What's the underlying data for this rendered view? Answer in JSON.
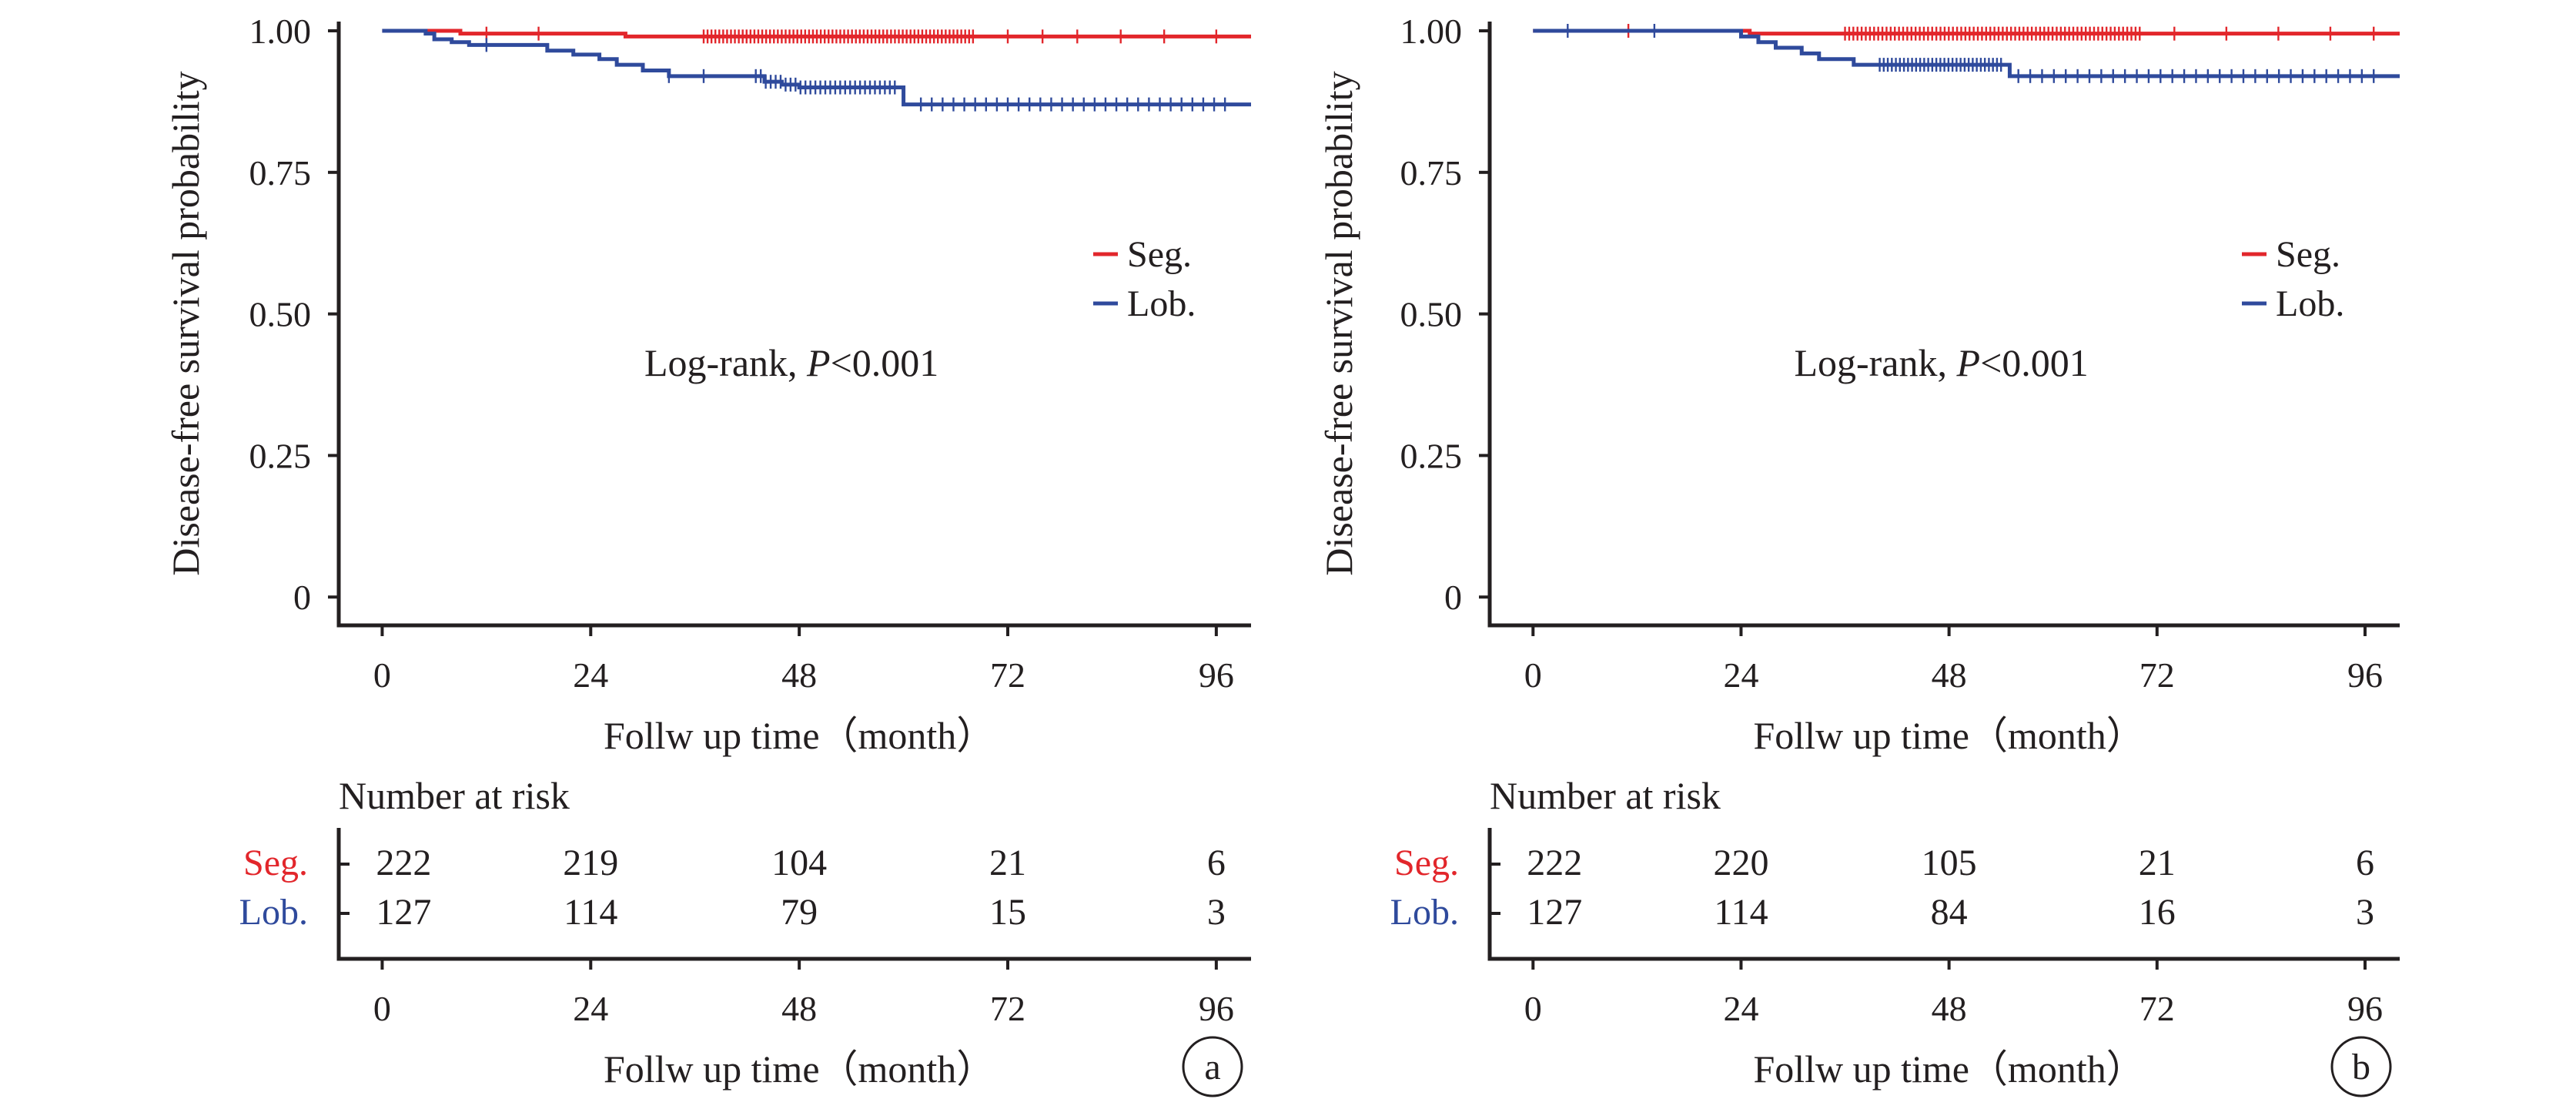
{
  "colors": {
    "seg": "#e2262b",
    "lob": "#2f4a9c",
    "ink": "#231f20"
  },
  "chart_data": [
    {
      "type": "line",
      "panel_label": "a",
      "ylabel": "Disease-free survival probability",
      "xlabel": "Follw up time（month）",
      "xticks": [
        "0",
        "24",
        "48",
        "72",
        "96"
      ],
      "yticks": [
        "0",
        "0.25",
        "0.50",
        "0.75",
        "1.00"
      ],
      "xlim": [
        -5,
        100
      ],
      "ylim": [
        -0.05,
        1.0
      ],
      "annotation": {
        "prefix": "Log-rank, ",
        "italic": "P",
        "suffix": "<0.001"
      },
      "legend": {
        "position": "right",
        "entries": [
          "Seg.",
          "Lob."
        ]
      },
      "series": [
        {
          "name": "Seg.",
          "color": "#e2262b",
          "steps": [
            [
              0,
              1.0
            ],
            [
              9,
              0.995
            ],
            [
              28,
              0.99
            ],
            [
              100,
              0.99
            ]
          ],
          "censored": {
            "ranges": [
              [
                37,
                68
              ]
            ],
            "count": 70,
            "points": [
              12,
              18,
              72,
              76,
              80,
              85,
              90,
              96
            ]
          }
        },
        {
          "name": "Lob.",
          "color": "#2f4a9c",
          "steps": [
            [
              0,
              1.0
            ],
            [
              5,
              0.995
            ],
            [
              6,
              0.985
            ],
            [
              8,
              0.98
            ],
            [
              10,
              0.975
            ],
            [
              19,
              0.965
            ],
            [
              22,
              0.958
            ],
            [
              25,
              0.95
            ],
            [
              27,
              0.94
            ],
            [
              30,
              0.93
            ],
            [
              33,
              0.92
            ],
            [
              44,
              0.91
            ],
            [
              46,
              0.905
            ],
            [
              48,
              0.9
            ],
            [
              60,
              0.87
            ],
            [
              100,
              0.87
            ]
          ],
          "censored": {
            "ranges": [
              [
                43,
                59
              ],
              [
                62,
                97
              ]
            ],
            "count": 58,
            "points": [
              12,
              33,
              37
            ]
          }
        }
      ],
      "risk_table": {
        "title": "Number at risk",
        "rows": [
          {
            "label": "Seg.",
            "values": [
              "222",
              "219",
              "104",
              "21",
              "6"
            ]
          },
          {
            "label": "Lob.",
            "values": [
              "127",
              "114",
              "79",
              "15",
              "3"
            ]
          }
        ],
        "xticks": [
          "0",
          "24",
          "48",
          "72",
          "96"
        ],
        "xlabel": "Follw up time（month）"
      }
    },
    {
      "type": "line",
      "panel_label": "b",
      "ylabel": "Disease-free survival probability",
      "xlabel": "Follw up time（month）",
      "xticks": [
        "0",
        "24",
        "48",
        "72",
        "96"
      ],
      "yticks": [
        "0",
        "0.25",
        "0.50",
        "0.75",
        "1.00"
      ],
      "xlim": [
        -5,
        100
      ],
      "ylim": [
        -0.05,
        1.0
      ],
      "annotation": {
        "prefix": "Log-rank, ",
        "italic": "P",
        "suffix": "<0.001"
      },
      "legend": {
        "position": "right",
        "entries": [
          "Seg.",
          "Lob."
        ]
      },
      "series": [
        {
          "name": "Seg.",
          "color": "#e2262b",
          "steps": [
            [
              0,
              1.0
            ],
            [
              25,
              0.995
            ],
            [
              100,
              0.995
            ]
          ],
          "censored": {
            "ranges": [
              [
                36,
                70
              ]
            ],
            "count": 72,
            "points": [
              11,
              74,
              80,
              86,
              92,
              97
            ]
          }
        },
        {
          "name": "Lob.",
          "color": "#2f4a9c",
          "steps": [
            [
              0,
              1.0
            ],
            [
              24,
              0.99
            ],
            [
              26,
              0.98
            ],
            [
              28,
              0.97
            ],
            [
              31,
              0.96
            ],
            [
              33,
              0.95
            ],
            [
              37,
              0.94
            ],
            [
              55,
              0.92
            ],
            [
              100,
              0.92
            ]
          ],
          "censored": {
            "ranges": [
              [
                40,
                54
              ],
              [
                56,
                97
              ]
            ],
            "count": 62,
            "points": [
              4,
              14
            ]
          }
        }
      ],
      "risk_table": {
        "title": "Number at risk",
        "rows": [
          {
            "label": "Seg.",
            "values": [
              "222",
              "220",
              "105",
              "21",
              "6"
            ]
          },
          {
            "label": "Lob.",
            "values": [
              "127",
              "114",
              "84",
              "16",
              "3"
            ]
          }
        ],
        "xticks": [
          "0",
          "24",
          "48",
          "72",
          "96"
        ],
        "xlabel": "Follw up time（month）"
      }
    }
  ]
}
